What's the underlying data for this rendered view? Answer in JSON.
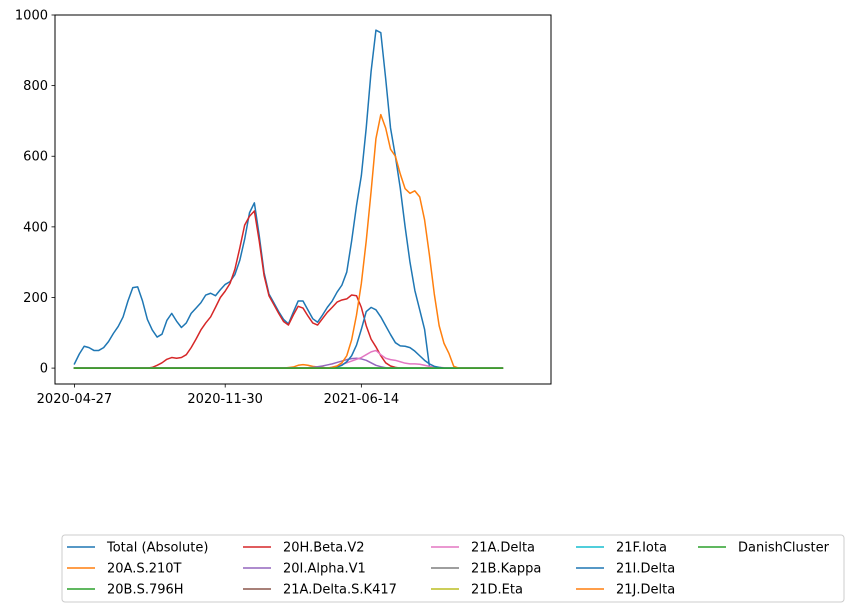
{
  "chart_data": {
    "type": "line",
    "title": "",
    "xlabel": "",
    "ylabel": "",
    "x_ticks": [
      "2020-04-27",
      "2020-11-30",
      "2021-06-14"
    ],
    "y_ticks": [
      "0",
      "200",
      "400",
      "600",
      "800",
      "1000"
    ],
    "xlim": [
      "2020-03-30",
      "2022-03-14"
    ],
    "ylim": [
      -45,
      1000
    ],
    "grid": false,
    "legend_position": "bottom",
    "series": [
      {
        "name": "Total (Absolute)",
        "color": "#1f77b4",
        "points": [
          [
            "2020-04-27",
            12
          ],
          [
            "2020-05-04",
            40
          ],
          [
            "2020-05-11",
            62
          ],
          [
            "2020-05-18",
            58
          ],
          [
            "2020-05-25",
            50
          ],
          [
            "2020-06-01",
            50
          ],
          [
            "2020-06-08",
            58
          ],
          [
            "2020-06-15",
            75
          ],
          [
            "2020-06-22",
            98
          ],
          [
            "2020-06-29",
            118
          ],
          [
            "2020-07-06",
            145
          ],
          [
            "2020-07-13",
            190
          ],
          [
            "2020-07-20",
            228
          ],
          [
            "2020-07-27",
            230
          ],
          [
            "2020-08-03",
            190
          ],
          [
            "2020-08-10",
            138
          ],
          [
            "2020-08-17",
            108
          ],
          [
            "2020-08-24",
            88
          ],
          [
            "2020-08-31",
            96
          ],
          [
            "2020-09-07",
            135
          ],
          [
            "2020-09-14",
            155
          ],
          [
            "2020-09-21",
            133
          ],
          [
            "2020-09-28",
            115
          ],
          [
            "2020-10-05",
            128
          ],
          [
            "2020-10-12",
            155
          ],
          [
            "2020-10-19",
            170
          ],
          [
            "2020-10-26",
            185
          ],
          [
            "2020-11-02",
            207
          ],
          [
            "2020-11-09",
            212
          ],
          [
            "2020-11-16",
            205
          ],
          [
            "2020-11-23",
            222
          ],
          [
            "2020-11-30",
            237
          ],
          [
            "2020-12-07",
            245
          ],
          [
            "2020-12-14",
            265
          ],
          [
            "2020-12-21",
            305
          ],
          [
            "2020-12-28",
            365
          ],
          [
            "2021-01-04",
            440
          ],
          [
            "2021-01-11",
            468
          ],
          [
            "2021-01-18",
            375
          ],
          [
            "2021-01-25",
            270
          ],
          [
            "2021-02-01",
            210
          ],
          [
            "2021-02-08",
            185
          ],
          [
            "2021-02-15",
            160
          ],
          [
            "2021-02-22",
            138
          ],
          [
            "2021-03-01",
            125
          ],
          [
            "2021-03-08",
            158
          ],
          [
            "2021-03-15",
            190
          ],
          [
            "2021-03-22",
            190
          ],
          [
            "2021-03-29",
            165
          ],
          [
            "2021-04-05",
            140
          ],
          [
            "2021-04-12",
            130
          ],
          [
            "2021-04-19",
            150
          ],
          [
            "2021-04-26",
            172
          ],
          [
            "2021-05-03",
            190
          ],
          [
            "2021-05-10",
            215
          ],
          [
            "2021-05-17",
            235
          ],
          [
            "2021-05-24",
            272
          ],
          [
            "2021-05-31",
            360
          ],
          [
            "2021-06-07",
            460
          ],
          [
            "2021-06-14",
            545
          ],
          [
            "2021-06-21",
            680
          ],
          [
            "2021-06-28",
            840
          ],
          [
            "2021-07-05",
            957
          ],
          [
            "2021-07-12",
            950
          ],
          [
            "2021-07-19",
            820
          ],
          [
            "2021-07-26",
            680
          ],
          [
            "2021-08-02",
            600
          ],
          [
            "2021-08-09",
            510
          ],
          [
            "2021-08-16",
            400
          ],
          [
            "2021-08-23",
            300
          ],
          [
            "2021-08-30",
            220
          ],
          [
            "2021-09-06",
            165
          ],
          [
            "2021-09-13",
            110
          ],
          [
            "2021-09-20",
            5
          ],
          [
            "2021-09-27",
            0
          ],
          [
            "2021-10-04",
            0
          ]
        ]
      },
      {
        "name": "20A.S.210T",
        "color": "#ff7f0e",
        "points": [
          [
            "2020-04-27",
            0
          ],
          [
            "2021-02-22",
            0
          ],
          [
            "2021-03-08",
            3
          ],
          [
            "2021-03-15",
            8
          ],
          [
            "2021-03-22",
            10
          ],
          [
            "2021-03-29",
            8
          ],
          [
            "2021-04-05",
            5
          ],
          [
            "2021-04-12",
            3
          ],
          [
            "2021-04-19",
            2
          ],
          [
            "2021-04-26",
            0
          ],
          [
            "2021-10-04",
            0
          ]
        ]
      },
      {
        "name": "20B.S.796H",
        "color": "#2ca02c",
        "points": [
          [
            "2020-04-27",
            0
          ],
          [
            "2022-01-03",
            0
          ]
        ]
      },
      {
        "name": "20H.Beta.V2",
        "color": "#d62728",
        "points": [
          [
            "2020-04-27",
            0
          ],
          [
            "2020-08-10",
            0
          ],
          [
            "2020-08-17",
            2
          ],
          [
            "2020-08-24",
            8
          ],
          [
            "2020-08-31",
            15
          ],
          [
            "2020-09-07",
            25
          ],
          [
            "2020-09-14",
            30
          ],
          [
            "2020-09-21",
            28
          ],
          [
            "2020-09-28",
            30
          ],
          [
            "2020-10-05",
            38
          ],
          [
            "2020-10-12",
            58
          ],
          [
            "2020-10-19",
            82
          ],
          [
            "2020-10-26",
            108
          ],
          [
            "2020-11-02",
            128
          ],
          [
            "2020-11-09",
            145
          ],
          [
            "2020-11-16",
            172
          ],
          [
            "2020-11-23",
            200
          ],
          [
            "2020-11-30",
            218
          ],
          [
            "2020-12-07",
            240
          ],
          [
            "2020-12-14",
            280
          ],
          [
            "2020-12-21",
            340
          ],
          [
            "2020-12-28",
            405
          ],
          [
            "2021-01-04",
            430
          ],
          [
            "2021-01-11",
            445
          ],
          [
            "2021-01-18",
            360
          ],
          [
            "2021-01-25",
            262
          ],
          [
            "2021-02-01",
            205
          ],
          [
            "2021-02-08",
            180
          ],
          [
            "2021-02-15",
            155
          ],
          [
            "2021-02-22",
            132
          ],
          [
            "2021-03-01",
            122
          ],
          [
            "2021-03-08",
            150
          ],
          [
            "2021-03-15",
            175
          ],
          [
            "2021-03-22",
            170
          ],
          [
            "2021-03-29",
            148
          ],
          [
            "2021-04-05",
            128
          ],
          [
            "2021-04-12",
            122
          ],
          [
            "2021-04-19",
            140
          ],
          [
            "2021-04-26",
            158
          ],
          [
            "2021-05-03",
            172
          ],
          [
            "2021-05-10",
            187
          ],
          [
            "2021-05-17",
            193
          ],
          [
            "2021-05-24",
            196
          ],
          [
            "2021-05-31",
            207
          ],
          [
            "2021-06-07",
            205
          ],
          [
            "2021-06-14",
            172
          ],
          [
            "2021-06-21",
            120
          ],
          [
            "2021-06-28",
            82
          ],
          [
            "2021-07-05",
            60
          ],
          [
            "2021-07-12",
            35
          ],
          [
            "2021-07-19",
            15
          ],
          [
            "2021-07-26",
            6
          ],
          [
            "2021-08-02",
            2
          ],
          [
            "2021-08-09",
            0
          ],
          [
            "2021-10-04",
            0
          ]
        ]
      },
      {
        "name": "20I.Alpha.V1",
        "color": "#9467bd",
        "points": [
          [
            "2020-04-27",
            0
          ],
          [
            "2021-03-22",
            0
          ],
          [
            "2021-03-29",
            1
          ],
          [
            "2021-04-05",
            2
          ],
          [
            "2021-04-12",
            4
          ],
          [
            "2021-04-19",
            6
          ],
          [
            "2021-04-26",
            9
          ],
          [
            "2021-05-03",
            12
          ],
          [
            "2021-05-10",
            16
          ],
          [
            "2021-05-17",
            20
          ],
          [
            "2021-05-24",
            24
          ],
          [
            "2021-05-31",
            27
          ],
          [
            "2021-06-07",
            28
          ],
          [
            "2021-06-14",
            26
          ],
          [
            "2021-06-21",
            22
          ],
          [
            "2021-06-28",
            15
          ],
          [
            "2021-07-05",
            8
          ],
          [
            "2021-07-12",
            4
          ],
          [
            "2021-07-19",
            1
          ],
          [
            "2021-07-26",
            0
          ],
          [
            "2021-10-04",
            0
          ]
        ]
      },
      {
        "name": "21A.Delta.S.K417",
        "color": "#8c564b",
        "points": [
          [
            "2020-04-27",
            0
          ],
          [
            "2022-01-03",
            0
          ]
        ]
      },
      {
        "name": "21A.Delta",
        "color": "#e377c2",
        "points": [
          [
            "2020-04-27",
            0
          ],
          [
            "2021-04-26",
            0
          ],
          [
            "2021-05-03",
            3
          ],
          [
            "2021-05-10",
            6
          ],
          [
            "2021-05-17",
            10
          ],
          [
            "2021-05-24",
            15
          ],
          [
            "2021-05-31",
            20
          ],
          [
            "2021-06-07",
            25
          ],
          [
            "2021-06-14",
            30
          ],
          [
            "2021-06-21",
            38
          ],
          [
            "2021-06-28",
            46
          ],
          [
            "2021-07-05",
            50
          ],
          [
            "2021-07-12",
            38
          ],
          [
            "2021-07-19",
            28
          ],
          [
            "2021-07-26",
            24
          ],
          [
            "2021-08-02",
            22
          ],
          [
            "2021-08-09",
            18
          ],
          [
            "2021-08-16",
            14
          ],
          [
            "2021-08-23",
            12
          ],
          [
            "2021-08-30",
            12
          ],
          [
            "2021-09-06",
            11
          ],
          [
            "2021-09-13",
            8
          ],
          [
            "2021-09-20",
            5
          ],
          [
            "2021-09-27",
            3
          ],
          [
            "2021-10-04",
            2
          ],
          [
            "2021-10-11",
            1
          ],
          [
            "2021-10-18",
            0
          ]
        ]
      },
      {
        "name": "21B.Kappa",
        "color": "#7f7f7f",
        "points": [
          [
            "2020-04-27",
            0
          ],
          [
            "2022-01-03",
            0
          ]
        ]
      },
      {
        "name": "21D.Eta",
        "color": "#bcbd22",
        "points": [
          [
            "2020-04-27",
            0
          ],
          [
            "2022-01-03",
            0
          ]
        ]
      },
      {
        "name": "21F.Iota",
        "color": "#17becf",
        "points": [
          [
            "2020-04-27",
            0
          ],
          [
            "2022-01-03",
            0
          ]
        ]
      },
      {
        "name": "21I.Delta",
        "color": "#1f77b4",
        "points": [
          [
            "2020-04-27",
            0
          ],
          [
            "2021-04-26",
            0
          ],
          [
            "2021-05-03",
            1
          ],
          [
            "2021-05-10",
            3
          ],
          [
            "2021-05-17",
            8
          ],
          [
            "2021-05-24",
            18
          ],
          [
            "2021-05-31",
            35
          ],
          [
            "2021-06-07",
            65
          ],
          [
            "2021-06-14",
            110
          ],
          [
            "2021-06-21",
            160
          ],
          [
            "2021-06-28",
            172
          ],
          [
            "2021-07-05",
            165
          ],
          [
            "2021-07-12",
            145
          ],
          [
            "2021-07-19",
            120
          ],
          [
            "2021-07-26",
            95
          ],
          [
            "2021-08-02",
            72
          ],
          [
            "2021-08-09",
            63
          ],
          [
            "2021-08-16",
            62
          ],
          [
            "2021-08-23",
            58
          ],
          [
            "2021-08-30",
            48
          ],
          [
            "2021-09-06",
            35
          ],
          [
            "2021-09-13",
            22
          ],
          [
            "2021-09-20",
            12
          ],
          [
            "2021-09-27",
            5
          ],
          [
            "2021-10-04",
            2
          ],
          [
            "2021-10-11",
            0
          ],
          [
            "2022-01-03",
            0
          ]
        ]
      },
      {
        "name": "21J.Delta",
        "color": "#ff7f0e",
        "points": [
          [
            "2020-04-27",
            0
          ],
          [
            "2021-04-26",
            0
          ],
          [
            "2021-05-03",
            2
          ],
          [
            "2021-05-10",
            6
          ],
          [
            "2021-05-17",
            15
          ],
          [
            "2021-05-24",
            35
          ],
          [
            "2021-05-31",
            80
          ],
          [
            "2021-06-07",
            150
          ],
          [
            "2021-06-14",
            240
          ],
          [
            "2021-06-21",
            360
          ],
          [
            "2021-06-28",
            500
          ],
          [
            "2021-07-05",
            650
          ],
          [
            "2021-07-12",
            718
          ],
          [
            "2021-07-19",
            680
          ],
          [
            "2021-07-26",
            620
          ],
          [
            "2021-08-02",
            600
          ],
          [
            "2021-08-09",
            550
          ],
          [
            "2021-08-16",
            508
          ],
          [
            "2021-08-23",
            495
          ],
          [
            "2021-08-30",
            502
          ],
          [
            "2021-09-06",
            485
          ],
          [
            "2021-09-13",
            420
          ],
          [
            "2021-09-20",
            320
          ],
          [
            "2021-09-27",
            210
          ],
          [
            "2021-10-04",
            120
          ],
          [
            "2021-10-11",
            70
          ],
          [
            "2021-10-18",
            42
          ],
          [
            "2021-10-25",
            5
          ],
          [
            "2021-11-01",
            0
          ],
          [
            "2022-01-03",
            0
          ]
        ]
      },
      {
        "name": "DanishCluster",
        "color": "#2ca02c",
        "points": [
          [
            "2020-04-27",
            0
          ],
          [
            "2022-01-03",
            0
          ]
        ]
      }
    ],
    "legend_columns": 5
  }
}
